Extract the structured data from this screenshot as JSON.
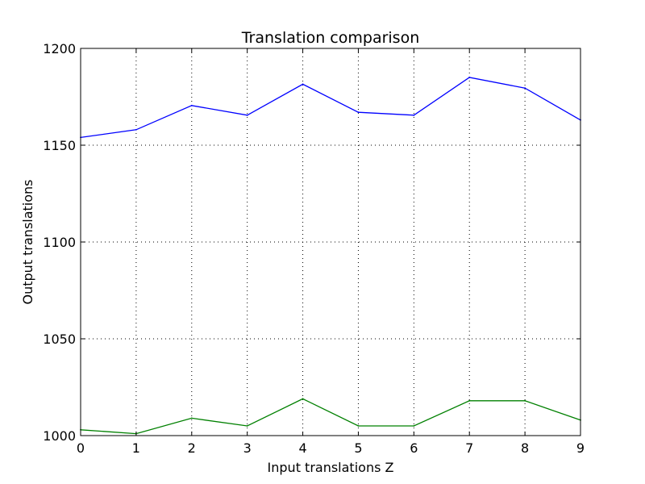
{
  "chart_data": {
    "type": "line",
    "title": "Translation comparison",
    "xlabel": "Input translations Z",
    "ylabel": "Output translations",
    "x": [
      0,
      1,
      2,
      3,
      4,
      5,
      6,
      7,
      8,
      9
    ],
    "xlim": [
      0,
      9
    ],
    "ylim": [
      1000,
      1200
    ],
    "xticks": [
      "0",
      "1",
      "2",
      "3",
      "4",
      "5",
      "6",
      "7",
      "8",
      "9"
    ],
    "yticks": [
      "1000",
      "1050",
      "1100",
      "1150",
      "1200"
    ],
    "grid": true,
    "series": [
      {
        "color": "#0000ff",
        "values": [
          1154,
          1158,
          1170.5,
          1165.5,
          1181.5,
          1167,
          1165.5,
          1185,
          1179.5,
          1163
        ]
      },
      {
        "color": "#008000",
        "values": [
          1003,
          1001,
          1009,
          1005,
          1019,
          1005,
          1005,
          1018,
          1018,
          1008
        ]
      }
    ]
  }
}
